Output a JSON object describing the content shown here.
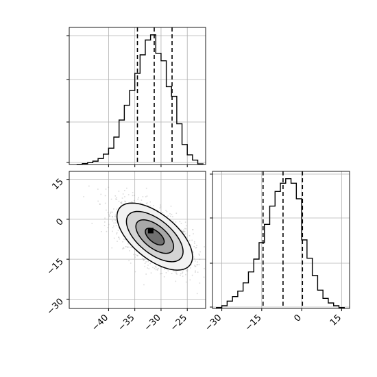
{
  "chart_data": {
    "type": "corner",
    "panels": [
      {
        "id": "hist-param-1",
        "type": "histogram",
        "xlim": [
          -47.5,
          -21.5
        ],
        "bin_edges": [
          -46,
          -45,
          -44,
          -43,
          -42,
          -41,
          -40,
          -39,
          -38,
          -37,
          -36,
          -35,
          -34,
          -33,
          -32,
          -31,
          -30,
          -29,
          -28,
          -27,
          -26,
          -25,
          -24,
          -23,
          -22
        ],
        "counts": [
          0.3,
          1.2,
          2.5,
          4.5,
          8,
          14,
          22,
          37,
          60,
          80,
          100,
          123,
          148,
          168,
          175,
          150,
          140,
          105,
          92,
          55,
          27,
          13,
          6,
          0.8
        ],
        "ylim": [
          0,
          185
        ],
        "quantile_lines": [
          -34.5,
          -31.3,
          -27.9
        ],
        "grid": true,
        "ytick_labels_visible": false
      },
      {
        "id": "scatter-param-1-vs-param-2",
        "type": "2d-density",
        "xlim": [
          -47.5,
          -21.5
        ],
        "ylim": [
          -33.5,
          18
        ],
        "xticks": [
          -40,
          -35,
          -30,
          -25
        ],
        "xtick_labels": [
          "−40",
          "−35",
          "−30",
          "−25"
        ],
        "yticks": [
          -30,
          -15,
          0,
          15
        ],
        "ytick_labels": [
          "−30",
          "−15",
          "0",
          "15"
        ],
        "center": [
          -31.2,
          -6.5
        ],
        "sd": [
          3.6,
          6.3
        ],
        "correlation": -0.6,
        "contour_levels_sigma": [
          0.5,
          1.0,
          1.5,
          2.0
        ],
        "grid": true
      },
      {
        "id": "hist-param-2",
        "type": "histogram",
        "xlim": [
          -33.5,
          18
        ],
        "bin_edges": [
          -32,
          -30,
          -28,
          -26,
          -24,
          -22,
          -20,
          -18,
          -16,
          -14,
          -12,
          -10,
          -8,
          -6,
          -4,
          -2,
          0,
          2,
          4,
          6,
          8,
          10,
          12,
          14,
          16
        ],
        "counts": [
          1,
          3,
          8,
          13,
          19,
          28,
          40,
          54,
          72,
          92,
          112,
          128,
          137,
          142,
          137,
          120,
          75,
          55,
          36,
          20,
          11,
          6,
          3,
          1
        ],
        "ylim": [
          0,
          150
        ],
        "quantile_lines": [
          -14.5,
          -7.0,
          0.3
        ],
        "xticks": [
          -30,
          -15,
          0,
          15
        ],
        "xtick_labels": [
          "−30",
          "−15",
          "0",
          "15"
        ],
        "grid": true,
        "ytick_labels_visible": false
      }
    ],
    "title": "",
    "xlabel": "",
    "ylabel": ""
  }
}
